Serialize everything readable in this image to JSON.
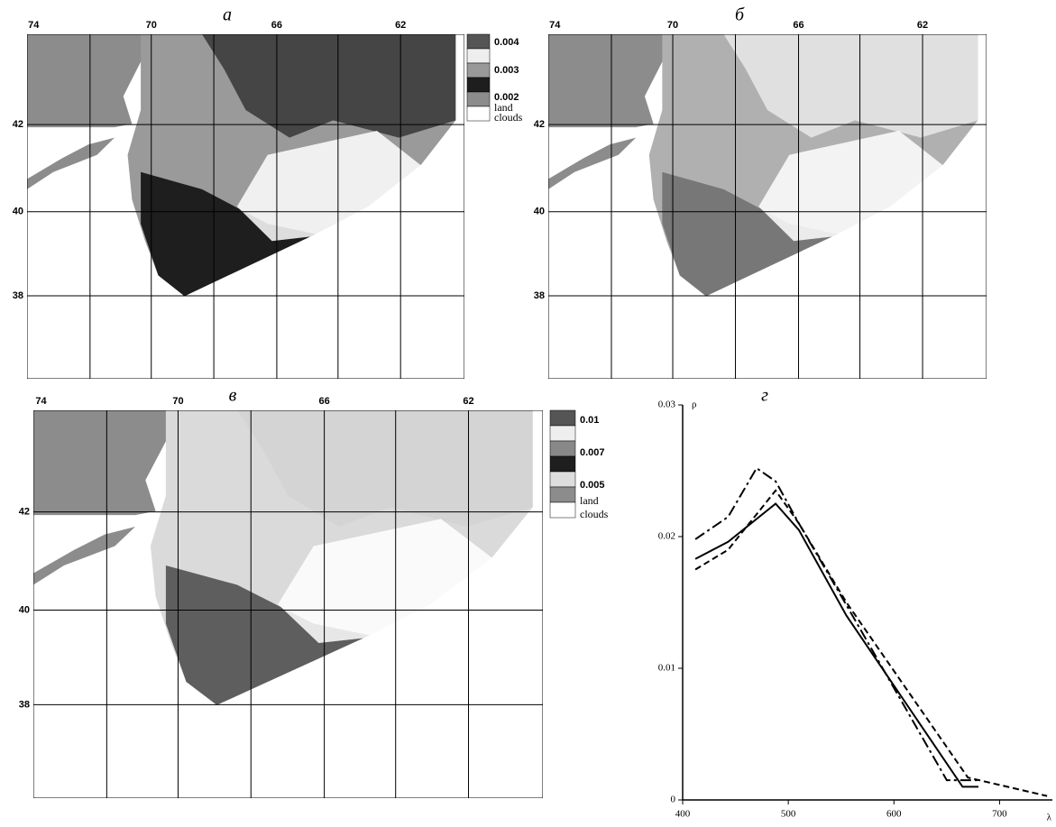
{
  "panels": [
    {
      "label": "а",
      "lon_labels": [
        "74",
        "70",
        "66",
        "62"
      ],
      "lat_labels": [
        "42",
        "40",
        "38"
      ],
      "legend": [
        "0.004",
        "0.003",
        "0.002",
        "land",
        "clouds"
      ]
    },
    {
      "label": "б",
      "lon_labels": [
        "74",
        "70",
        "66",
        "62"
      ],
      "lat_labels": [
        "42",
        "40",
        "38"
      ]
    },
    {
      "label": "в",
      "lon_labels": [
        "74",
        "70",
        "66",
        "62"
      ],
      "lat_labels": [
        "42",
        "40",
        "38"
      ],
      "legend": [
        "0.01",
        "0.007",
        "0.005",
        "land",
        "clouds"
      ]
    }
  ],
  "chart_data": {
    "type": "line",
    "label": "г",
    "y_label": "ρ",
    "x_label": "λ",
    "xlim": [
      400,
      750
    ],
    "ylim": [
      0,
      0.03
    ],
    "xticks": [
      400,
      500,
      600,
      700
    ],
    "yticks": [
      0,
      0.01,
      0.02,
      0.03
    ],
    "series": [
      {
        "color": "#000000",
        "dash": "solid",
        "x": [
          412,
          443,
          488,
          510,
          555,
          665,
          680
        ],
        "values": [
          0.0183,
          0.0196,
          0.0225,
          0.0205,
          0.014,
          0.001,
          0.001
        ]
      },
      {
        "color": "#000000",
        "dash": "dashed",
        "x": [
          412,
          443,
          488,
          510,
          555,
          670,
          745
        ],
        "values": [
          0.0175,
          0.019,
          0.0235,
          0.021,
          0.015,
          0.0017,
          0.0003
        ]
      },
      {
        "color": "#000000",
        "dash": "dashdot",
        "x": [
          412,
          443,
          470,
          488,
          510,
          555,
          650,
          680
        ],
        "values": [
          0.0198,
          0.0215,
          0.0252,
          0.0242,
          0.021,
          0.0148,
          0.0015,
          0.0015
        ]
      }
    ]
  }
}
